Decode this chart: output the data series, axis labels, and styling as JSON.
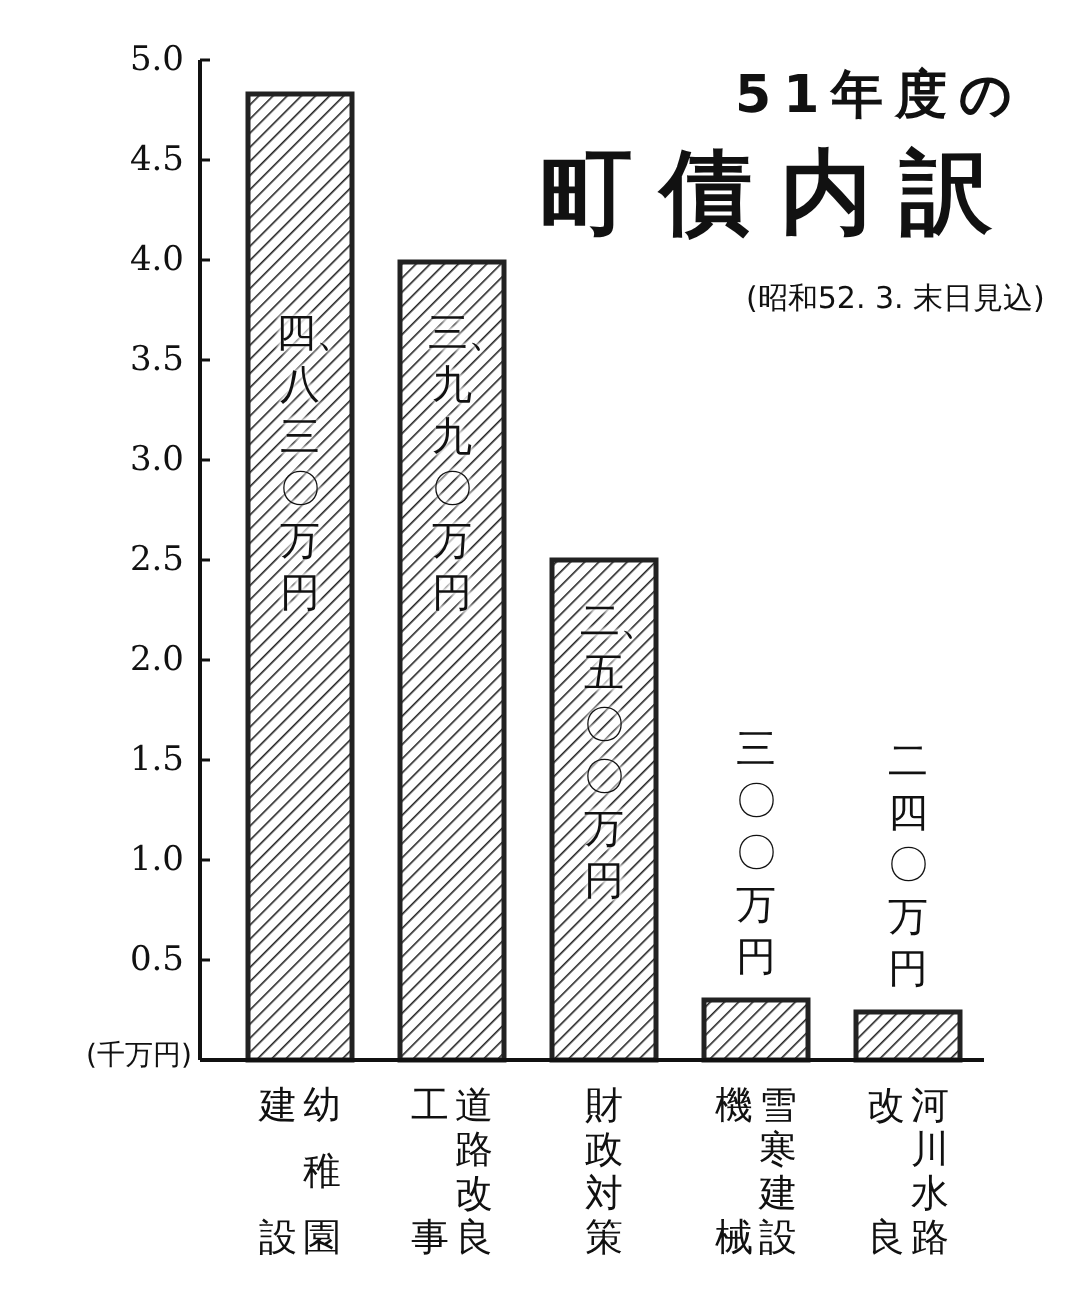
{
  "chart_data": {
    "type": "bar",
    "title": "51年度の",
    "subtitle": "町債内訳",
    "annotations": [
      "(昭和52. 3. 末日見込)"
    ],
    "ylabel": "(千万円)",
    "categories": [
      "幼稚園建設",
      "道路改良工事",
      "財政対策",
      "雪寒建設機械",
      "河川水路改良"
    ],
    "values": [
      4.83,
      3.99,
      2.5,
      0.3,
      0.24
    ],
    "value_labels": [
      "四、八三〇万円",
      "三、九九〇万円",
      "二、五〇〇万円",
      "三〇〇万円",
      "二四〇万円"
    ],
    "color": "#222222",
    "ylim": [
      0,
      5
    ],
    "yticks": [
      {
        "value": 0.5,
        "label": "0.5"
      },
      {
        "value": 1,
        "label": "1.0"
      },
      {
        "value": 1.5,
        "label": "1.5"
      },
      {
        "value": 2,
        "label": "2.0"
      },
      {
        "value": 2.5,
        "label": "2.5"
      },
      {
        "value": 3,
        "label": "3.0"
      },
      {
        "value": 3.5,
        "label": "3.5"
      },
      {
        "value": 4,
        "label": "4.0"
      },
      {
        "value": 4.5,
        "label": "4.5"
      },
      {
        "value": 5,
        "label": "5.0"
      }
    ]
  }
}
